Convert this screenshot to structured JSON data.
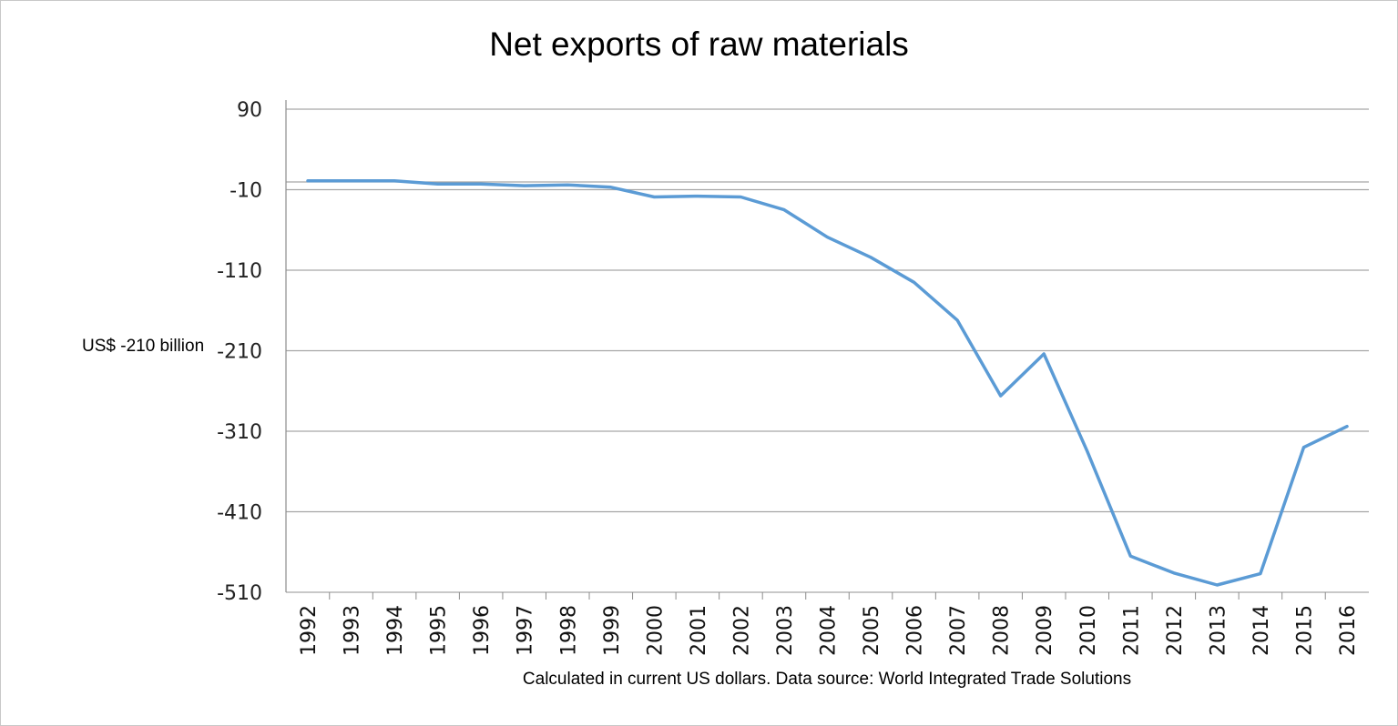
{
  "chart_data": {
    "type": "line",
    "title": "Net exports of raw materials",
    "ylabel": "US$ -210 billion",
    "note": "Calculated in current US dollars. Data source: World Integrated Trade Solutions",
    "ylim": [
      -510,
      90
    ],
    "yticks": [
      90,
      -10,
      -110,
      -210,
      -310,
      -410,
      -510
    ],
    "grid": true,
    "series": [
      {
        "color": "#5b9bd5",
        "x": [
          "1992",
          "1993",
          "1994",
          "1995",
          "1996",
          "1997",
          "1998",
          "1999",
          "2000",
          "2001",
          "2002",
          "2003",
          "2004",
          "2005",
          "2006",
          "2007",
          "2008",
          "2009",
          "2010",
          "2011",
          "2012",
          "2013",
          "2014",
          "2015",
          "2016"
        ],
        "values": [
          1,
          1,
          1,
          -3,
          -3,
          -5,
          -4,
          -7,
          -19,
          -18,
          -19,
          -35,
          -69,
          -94,
          -125,
          -172,
          -266,
          -214,
          -335,
          -465,
          -486,
          -501,
          -487,
          -330,
          -304
        ]
      }
    ]
  }
}
